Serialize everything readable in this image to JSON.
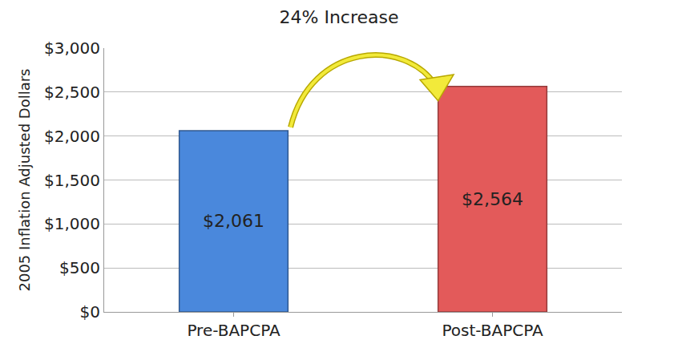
{
  "chart_data": {
    "type": "bar",
    "title": "24% Increase",
    "y_label": "2005 Inflation Adjusted Dollars",
    "categories": [
      "Pre-BAPCPA",
      "Post-BAPCPA"
    ],
    "values": [
      2061,
      2564
    ],
    "value_labels": [
      "$2,061",
      "$2,564"
    ],
    "colors": [
      "#4a88dc",
      "#e35a5a"
    ],
    "data_labels": true,
    "ylim": [
      0,
      3000
    ],
    "yticks": [
      {
        "value": 0,
        "label": "$0"
      },
      {
        "value": 500,
        "label": "$500"
      },
      {
        "value": 1000,
        "label": "$1,000"
      },
      {
        "value": 1500,
        "label": "$1,500"
      },
      {
        "value": 2000,
        "label": "$2,000"
      },
      {
        "value": 2500,
        "label": "$2,500"
      },
      {
        "value": 3000,
        "label": "$3,000"
      }
    ],
    "grid": true
  }
}
